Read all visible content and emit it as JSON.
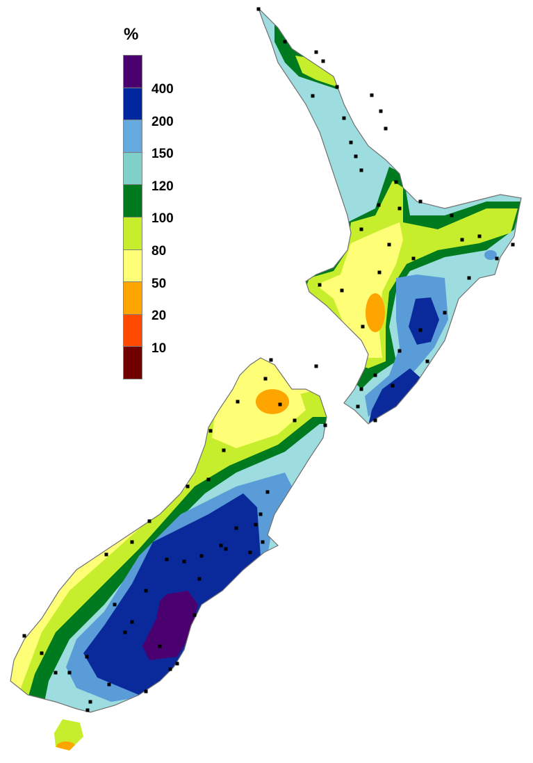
{
  "legend": {
    "title": "%",
    "colors": [
      "#4b0070",
      "#0026a0",
      "#64aade",
      "#7fd0c8",
      "#007a1e",
      "#c6ee2c",
      "#ffff77",
      "#ffa500",
      "#ff4a00",
      "#700000"
    ],
    "labels": [
      "400",
      "200",
      "150",
      "120",
      "100",
      "80",
      "50",
      "20",
      "10"
    ]
  },
  "map_colors": {
    "purple": "#4b0070",
    "dark_blue": "#0a2a9c",
    "light_blue": "#5a9cd8",
    "teal": "#9ddde0",
    "green": "#007a1e",
    "lime": "#c6ee2c",
    "yellow": "#ffff77",
    "orange": "#ffa500",
    "coast": "#707070",
    "station": "#000000"
  }
}
